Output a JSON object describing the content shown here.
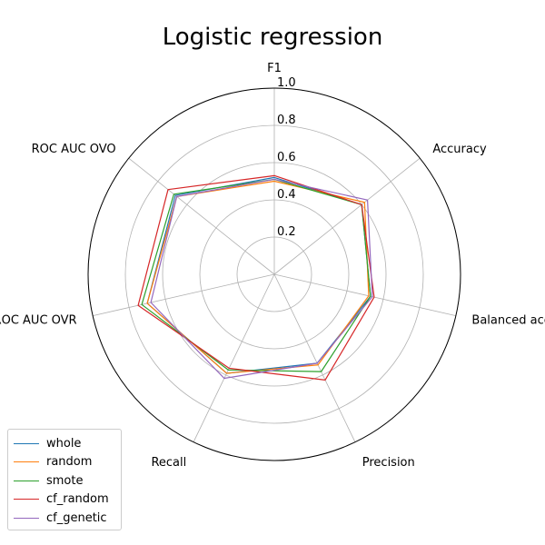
{
  "chart_data": {
    "type": "radar",
    "title": "Logistic regression",
    "axes": [
      "F1",
      "Accuracy",
      "Balanced accuracy",
      "Precision",
      "Recall",
      "ROC AUC OVR",
      "ROC AUC OVO"
    ],
    "rlim": [
      0,
      1.0
    ],
    "rticks": [
      0.2,
      0.4,
      0.6,
      0.8,
      1.0
    ],
    "rtick_labels": [
      "0.2",
      "0.4",
      "0.6",
      "0.8",
      "1.0"
    ],
    "grid": true,
    "legend_position": "lower-left",
    "series": [
      {
        "name": "whole",
        "color": "#1f77b4",
        "values": [
          0.52,
          0.6,
          0.53,
          0.53,
          0.59,
          0.7,
          0.68
        ]
      },
      {
        "name": "random",
        "color": "#ff7f0e",
        "values": [
          0.5,
          0.62,
          0.52,
          0.54,
          0.59,
          0.7,
          0.67
        ]
      },
      {
        "name": "smote",
        "color": "#2ca02c",
        "values": [
          0.51,
          0.6,
          0.53,
          0.58,
          0.57,
          0.73,
          0.69
        ]
      },
      {
        "name": "cf_random",
        "color": "#d62728",
        "values": [
          0.53,
          0.6,
          0.55,
          0.63,
          0.56,
          0.75,
          0.73
        ]
      },
      {
        "name": "cf_genetic",
        "color": "#9467bd",
        "values": [
          0.51,
          0.64,
          0.54,
          0.53,
          0.62,
          0.68,
          0.67
        ]
      }
    ]
  }
}
